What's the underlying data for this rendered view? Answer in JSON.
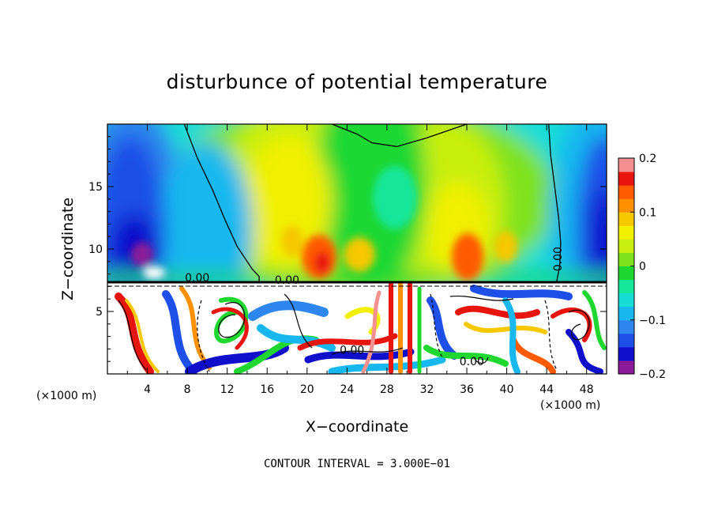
{
  "chart_data": {
    "type": "heatmap",
    "title": "disturbunce of potential temperature",
    "xlabel": "X−coordinate",
    "ylabel": "Z−coordinate",
    "x_unit_left": "(×1000 m)",
    "x_unit_right": "(×1000 m)",
    "footer": "CONTOUR INTERVAL = 3.000E−01",
    "xlim": [
      0,
      50
    ],
    "ylim": [
      0,
      20
    ],
    "x_ticks": [
      4,
      8,
      12,
      16,
      20,
      24,
      28,
      32,
      36,
      40,
      44,
      48
    ],
    "x_tick_labels": [
      "4",
      "8",
      "12",
      "16",
      "20",
      "24",
      "28",
      "32",
      "36",
      "40",
      "44",
      "48"
    ],
    "y_ticks": [
      5,
      10,
      15
    ],
    "y_tick_labels": [
      "5",
      "10",
      "15"
    ],
    "colorbar": {
      "range": [
        -0.2,
        0.2
      ],
      "ticks": [
        0.2,
        0.1,
        0,
        -0.1,
        -0.2
      ],
      "tick_labels": [
        "0.2",
        "0.1",
        "0",
        "−0.1",
        "−0.2"
      ],
      "colors": [
        "#8b1a9a",
        "#1010cc",
        "#1e4fe8",
        "#2f86ee",
        "#16b8ef",
        "#16dcd6",
        "#14e69a",
        "#1ed830",
        "#7ee21a",
        "#c8ee10",
        "#f0f000",
        "#f5c800",
        "#ff9000",
        "#ff5a00",
        "#e8140e",
        "#f59090"
      ]
    },
    "contour_labels": [
      "0.00",
      "0.00",
      "0.00",
      "0.00",
      "0.00"
    ],
    "contour_label_positions": [
      [
        9,
        7.4
      ],
      [
        18,
        7.2
      ],
      [
        45.5,
        9.2
      ],
      [
        24.5,
        1.6
      ],
      [
        36.5,
        0.7
      ]
    ],
    "zero_contour": {
      "left": [
        [
          7.7,
          20
        ],
        [
          9,
          17.3
        ],
        [
          10.5,
          14.8
        ],
        [
          11.8,
          12.3
        ],
        [
          13,
          10.2
        ],
        [
          14.5,
          8.4
        ],
        [
          15.2,
          7.8
        ],
        [
          15.2,
          7.4
        ]
      ],
      "top": [
        [
          22.5,
          20
        ],
        [
          25,
          19.2
        ],
        [
          26.5,
          18.5
        ],
        [
          29,
          18.2
        ],
        [
          32,
          18.9
        ],
        [
          36,
          20
        ]
      ],
      "right": [
        [
          44.2,
          20
        ],
        [
          44.4,
          17.5
        ],
        [
          44.8,
          15
        ],
        [
          45.2,
          12.5
        ],
        [
          45.4,
          10.5
        ],
        [
          45.3,
          8.6
        ],
        [
          45,
          7.4
        ]
      ]
    }
  }
}
